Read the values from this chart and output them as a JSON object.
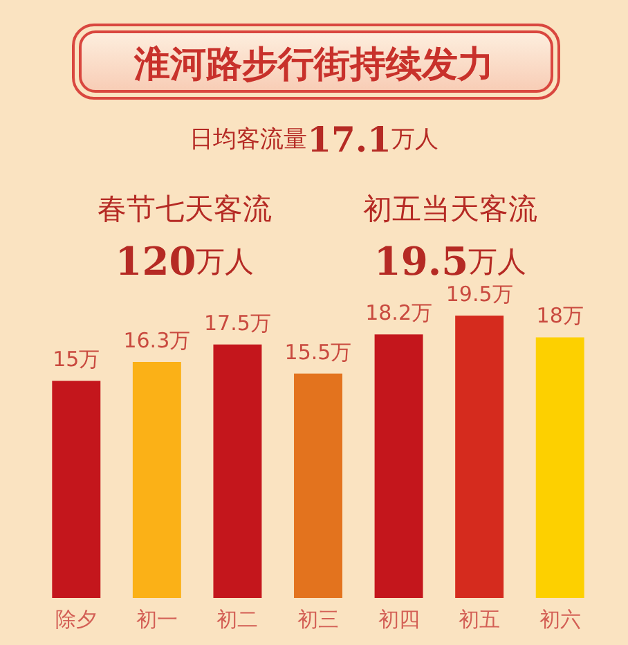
{
  "chart_data": {
    "type": "bar",
    "title": "淮河路步行街持续发力",
    "annotations": [
      "日均客流量17.1万人",
      "春节七天客流\n120万人",
      "初五当天客流\n19.5万人"
    ],
    "categories": [
      "除夕",
      "初一",
      "初二",
      "初三",
      "初四",
      "初五",
      "初六"
    ],
    "values": [
      15,
      16.3,
      17.5,
      15.5,
      18.2,
      19.5,
      18
    ],
    "colors": [
      "#c4161c",
      "#fbb117",
      "#c4161c",
      "#e3731e",
      "#c4161c",
      "#d52b1e",
      "#fdd000"
    ],
    "value_labels": [
      "15万",
      "16.3万",
      "17.5万",
      "15.5万",
      "18.2万",
      "19.5万",
      "18万"
    ],
    "tick_labels": "x"
  }
}
